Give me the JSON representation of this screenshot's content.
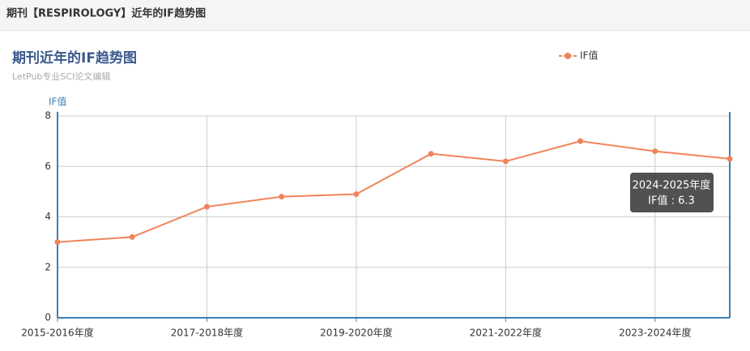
{
  "header": {
    "title": "期刊【RESPIROLOGY】近年的IF趋势图"
  },
  "chart_data": {
    "type": "line",
    "title": "期刊近年的IF趋势图",
    "subtitle": "LetPub专业SCI论文编辑",
    "y_label": "IF值",
    "categories": [
      "2015-2016年度",
      null,
      "2017-2018年度",
      null,
      "2019-2020年度",
      null,
      "2021-2022年度",
      null,
      "2023-2024年度",
      null
    ],
    "series": [
      {
        "name": "IF值",
        "color": "#f0845a",
        "values": [
          3.0,
          3.2,
          4.4,
          4.8,
          4.9,
          6.5,
          6.2,
          7.0,
          6.6,
          6.3
        ]
      }
    ],
    "ylim": [
      0,
      8
    ],
    "yticks": [
      0,
      2,
      4,
      6,
      8
    ],
    "grid": true,
    "legend": "top-right",
    "tooltip": {
      "category": "2024-2025年度",
      "label": "IF值 : 6.3"
    }
  }
}
